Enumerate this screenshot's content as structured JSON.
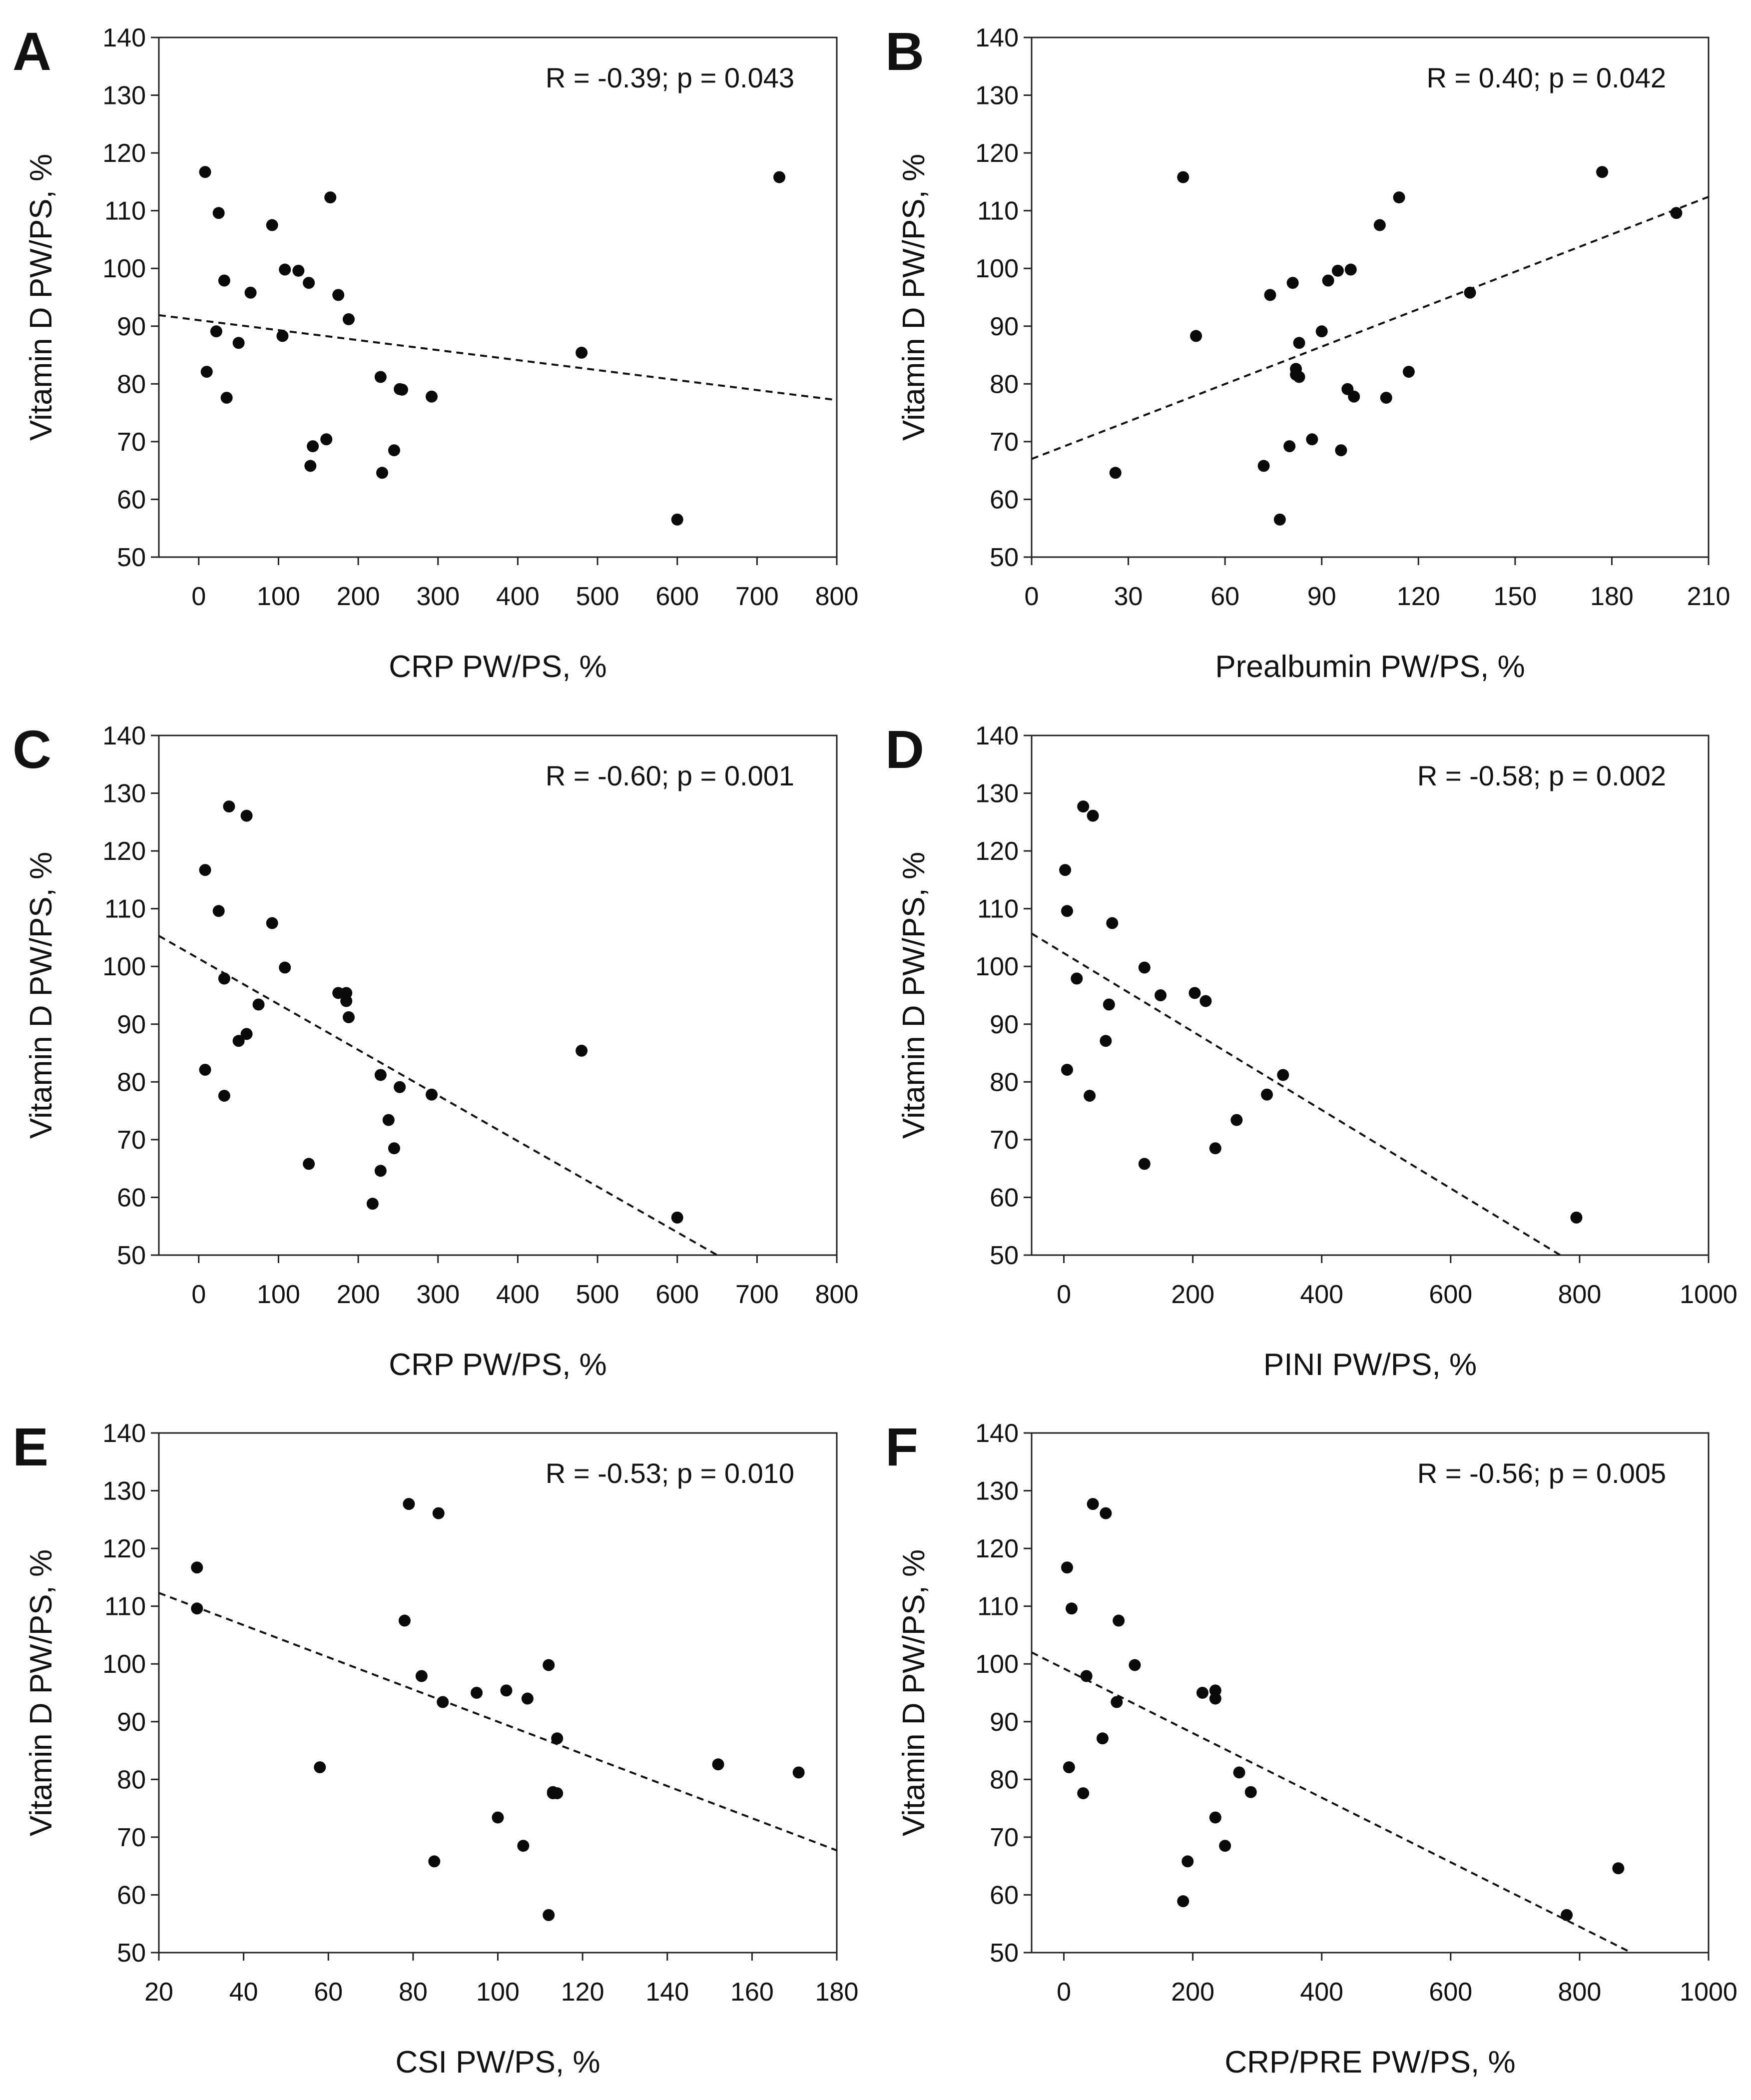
{
  "chart_data": [
    {
      "type": "scatter",
      "panel": "A",
      "annotation": "R = -0.39; p = 0.043",
      "xlabel": "CRP PW/PS, %",
      "ylabel": "Vitamin D PW/PS, %",
      "xlim": [
        -50,
        800
      ],
      "ylim": [
        50,
        140
      ],
      "xticks": [
        0,
        100,
        200,
        300,
        400,
        500,
        600,
        700,
        800
      ],
      "yticks": [
        50,
        60,
        70,
        80,
        90,
        100,
        110,
        120,
        130,
        140
      ],
      "x": [
        8,
        25,
        32,
        35,
        22,
        10,
        50,
        65,
        92,
        105,
        108,
        125,
        138,
        140,
        143,
        160,
        165,
        175,
        188,
        228,
        230,
        245,
        252,
        255,
        292,
        480,
        600,
        728
      ],
      "y": [
        116.7,
        109.6,
        97.9,
        77.6,
        89.1,
        82.1,
        87.1,
        95.8,
        107.5,
        88.3,
        99.8,
        99.6,
        97.5,
        65.8,
        69.2,
        70.4,
        112.3,
        95.4,
        91.2,
        81.2,
        64.6,
        68.5,
        79.1,
        79.0,
        77.8,
        85.4,
        56.5,
        115.8
      ],
      "trendline": {
        "x": [
          -50,
          800
        ],
        "y": [
          91.9,
          77.2
        ]
      }
    },
    {
      "type": "scatter",
      "panel": "B",
      "annotation": "R = 0.40; p = 0.042",
      "xlabel": "Prealbumin PW/PS, %",
      "ylabel": "Vitamin D PW/PS, %",
      "xlim": [
        0,
        210
      ],
      "ylim": [
        50,
        140
      ],
      "xticks": [
        0,
        30,
        60,
        90,
        120,
        150,
        180,
        210
      ],
      "yticks": [
        50,
        60,
        70,
        80,
        90,
        100,
        110,
        120,
        130,
        140
      ],
      "x": [
        26,
        47,
        51,
        72,
        74,
        77,
        80,
        81,
        82,
        82,
        83,
        83,
        87,
        90,
        92,
        95,
        96,
        98,
        99,
        100,
        108,
        110,
        114,
        117,
        136,
        177,
        200
      ],
      "y": [
        64.6,
        115.8,
        88.3,
        65.8,
        95.4,
        56.5,
        69.2,
        97.5,
        82.6,
        81.6,
        87.1,
        81.2,
        70.4,
        89.1,
        97.9,
        99.6,
        68.5,
        79.1,
        99.8,
        77.8,
        107.5,
        77.6,
        112.3,
        82.1,
        95.8,
        116.7,
        109.6
      ],
      "trendline": {
        "x": [
          0,
          210
        ],
        "y": [
          67.0,
          112.4
        ]
      }
    },
    {
      "type": "scatter",
      "panel": "C",
      "annotation": "R = -0.60; p = 0.001",
      "xlabel": "CRP PW/PS, %",
      "ylabel": "Vitamin D PW/PS, %",
      "xlim": [
        -50,
        800
      ],
      "ylim": [
        50,
        140
      ],
      "xticks": [
        0,
        100,
        200,
        300,
        400,
        500,
        600,
        700,
        800
      ],
      "yticks": [
        50,
        60,
        70,
        80,
        90,
        100,
        110,
        120,
        130,
        140
      ],
      "x": [
        8,
        8,
        25,
        32,
        32,
        38,
        50,
        60,
        60,
        75,
        92,
        108,
        138,
        175,
        185,
        185,
        188,
        218,
        228,
        228,
        238,
        245,
        252,
        292,
        480,
        600
      ],
      "y": [
        116.7,
        82.1,
        109.6,
        97.9,
        77.6,
        127.7,
        87.1,
        88.3,
        126.1,
        93.4,
        107.5,
        99.8,
        65.8,
        95.4,
        94.0,
        95.4,
        91.2,
        58.9,
        81.2,
        64.6,
        73.4,
        68.5,
        79.1,
        77.8,
        85.4,
        56.5
      ],
      "trendline": {
        "x": [
          -50,
          650
        ],
        "y": [
          105.3,
          50.0
        ]
      }
    },
    {
      "type": "scatter",
      "panel": "D",
      "annotation": "R = -0.58; p = 0.002",
      "xlabel": "PINI PW/PS, %",
      "ylabel": "Vitamin D PW/PS, %",
      "xlim": [
        -50,
        1000
      ],
      "ylim": [
        50,
        140
      ],
      "xticks": [
        0,
        200,
        400,
        600,
        800,
        1000
      ],
      "yticks": [
        50,
        60,
        70,
        80,
        90,
        100,
        110,
        120,
        130,
        140
      ],
      "x": [
        2,
        5,
        5,
        20,
        30,
        40,
        45,
        65,
        70,
        75,
        125,
        125,
        150,
        203,
        220,
        235,
        268,
        315,
        340,
        795
      ],
      "y": [
        116.7,
        109.6,
        82.1,
        97.9,
        127.7,
        77.6,
        126.1,
        87.1,
        93.4,
        107.5,
        99.8,
        65.8,
        95.0,
        95.4,
        94.0,
        68.5,
        73.4,
        77.8,
        81.2,
        56.5
      ],
      "trendline": {
        "x": [
          -50,
          770
        ],
        "y": [
          105.7,
          50.0
        ]
      }
    },
    {
      "type": "scatter",
      "panel": "E",
      "annotation": "R = -0.53; p = 0.010",
      "xlabel": "CSI PW/PS, %",
      "ylabel": "Vitamin D PW/PS, %",
      "xlim": [
        20,
        180
      ],
      "ylim": [
        50,
        140
      ],
      "xticks": [
        20,
        40,
        60,
        80,
        100,
        120,
        140,
        160,
        180
      ],
      "yticks": [
        50,
        60,
        70,
        80,
        90,
        100,
        110,
        120,
        130,
        140
      ],
      "x": [
        29,
        29,
        58,
        78,
        79,
        82,
        85,
        86,
        87,
        95,
        100,
        102,
        106,
        107,
        112,
        112,
        113,
        113,
        114,
        114,
        152,
        171
      ],
      "y": [
        116.7,
        109.6,
        82.1,
        107.5,
        127.7,
        97.9,
        65.8,
        126.1,
        93.4,
        95.0,
        73.4,
        95.4,
        68.5,
        94.0,
        99.8,
        56.5,
        77.8,
        77.6,
        87.1,
        77.6,
        82.6,
        81.2
      ],
      "trendline": {
        "x": [
          20,
          180
        ],
        "y": [
          112.3,
          67.7
        ]
      }
    },
    {
      "type": "scatter",
      "panel": "F",
      "annotation": "R = -0.56; p = 0.005",
      "xlabel": "CRP/PRE PW/PS, %",
      "ylabel": "Vitamin D PW/PS, %",
      "xlim": [
        -50,
        1000
      ],
      "ylim": [
        50,
        140
      ],
      "xticks": [
        0,
        200,
        400,
        600,
        800,
        1000
      ],
      "yticks": [
        50,
        60,
        70,
        80,
        90,
        100,
        110,
        120,
        130,
        140
      ],
      "x": [
        5,
        8,
        12,
        30,
        35,
        45,
        60,
        65,
        82,
        85,
        110,
        185,
        192,
        215,
        235,
        235,
        235,
        250,
        272,
        290,
        780,
        860
      ],
      "y": [
        116.7,
        82.1,
        109.6,
        77.6,
        97.9,
        127.7,
        87.1,
        126.1,
        93.4,
        107.5,
        99.8,
        58.9,
        65.8,
        95.0,
        95.4,
        94.0,
        73.4,
        68.5,
        81.2,
        77.8,
        56.5,
        64.6
      ],
      "trendline": {
        "x": [
          -50,
          880
        ],
        "y": [
          102.0,
          50.0
        ]
      }
    }
  ]
}
